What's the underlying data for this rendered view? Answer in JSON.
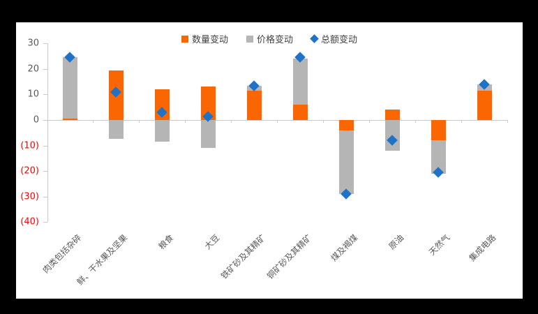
{
  "chart_data": {
    "type": "bar",
    "stacked": true,
    "title": "",
    "xlabel": "",
    "ylabel": "",
    "grid": false,
    "legend_position": "top",
    "ylim": [
      -40,
      30
    ],
    "ytick_interval": 10,
    "categories": [
      "肉类包括杂碎",
      "鲜、干水果及坚果",
      "粮食",
      "大豆",
      "铁矿砂及其精矿",
      "铜矿砂及其精矿",
      "煤及褐煤",
      "原油",
      "天然气",
      "集成电路"
    ],
    "series": [
      {
        "name": "数量变动",
        "type": "bar",
        "color": "#FA6602",
        "values": [
          0.5,
          19.5,
          12,
          13,
          11.5,
          6,
          -4,
          4,
          -8,
          11.5
        ]
      },
      {
        "name": "价格变动",
        "type": "bar",
        "color": "#B5B5B5",
        "values": [
          24,
          -7.5,
          -8.5,
          -11,
          2,
          18,
          -25,
          -12,
          -13,
          2.5
        ]
      },
      {
        "name": "总额变动",
        "type": "diamond-marker",
        "color": "#1E73C8",
        "values": [
          24.5,
          11,
          3,
          1.5,
          13.5,
          24.5,
          -29,
          -8,
          -20.5,
          14
        ]
      }
    ],
    "yticks": [
      {
        "label": "30",
        "value": 30,
        "color": "#595959"
      },
      {
        "label": "20",
        "value": 20,
        "color": "#595959"
      },
      {
        "label": "10",
        "value": 10,
        "color": "#595959"
      },
      {
        "label": "0",
        "value": 0,
        "color": "#595959"
      },
      {
        "label": "(10)",
        "value": -10,
        "color": "#FF0000"
      },
      {
        "label": "(20)",
        "value": -20,
        "color": "#FF0000"
      },
      {
        "label": "(30)",
        "value": -30,
        "color": "#FF0000"
      },
      {
        "label": "(40)",
        "value": -40,
        "color": "#FF0000"
      }
    ],
    "axis_color": "#C9C9C9"
  }
}
